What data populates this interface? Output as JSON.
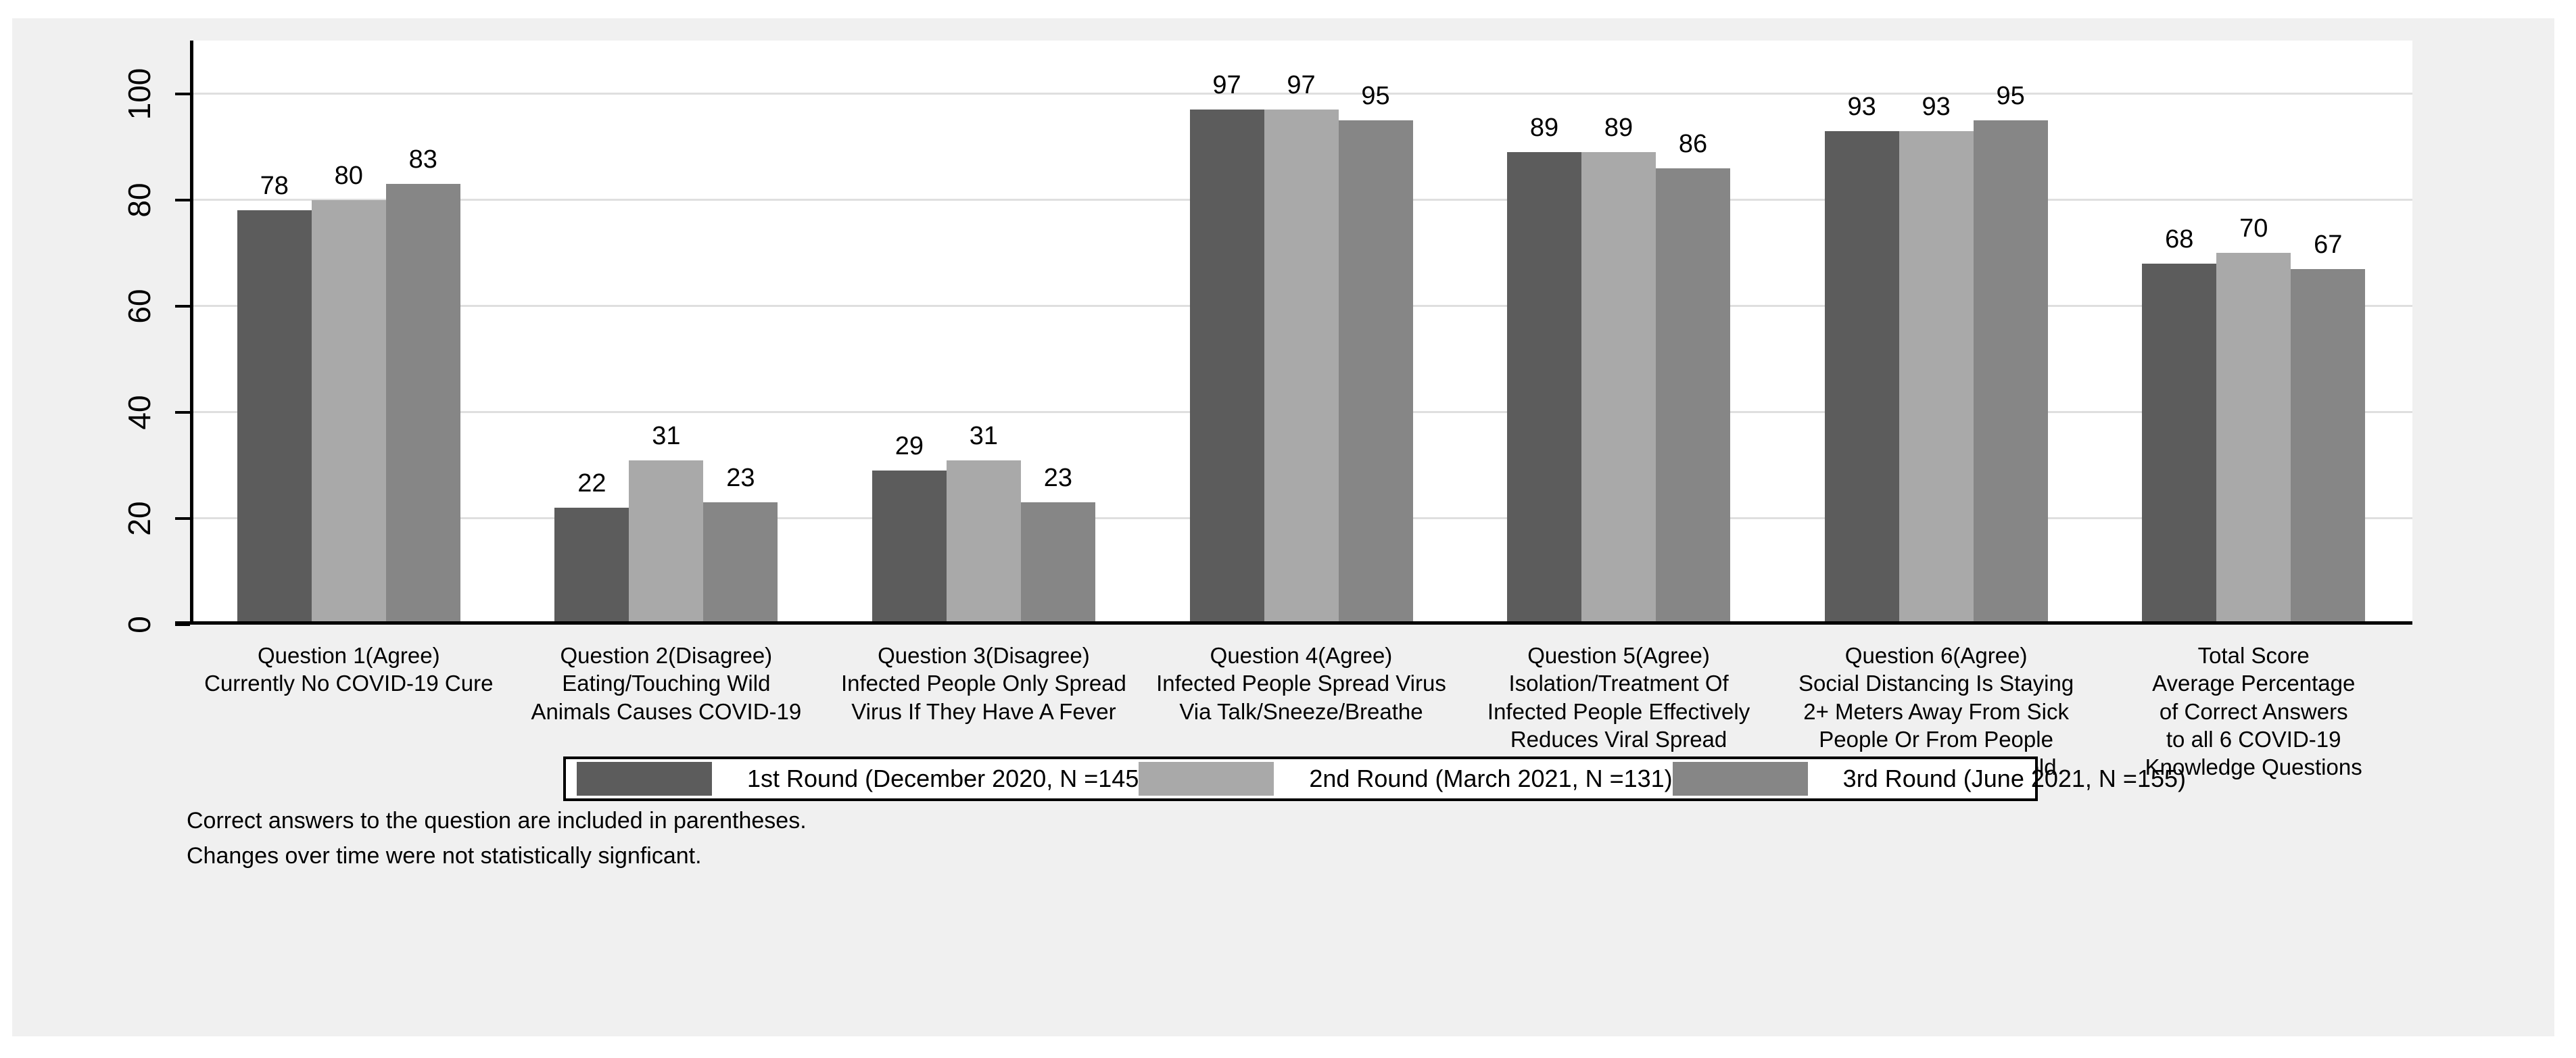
{
  "page": {
    "background": "#ffffff",
    "canvas_background": "#f0f0f0"
  },
  "chart_data": {
    "type": "bar",
    "title": "",
    "xlabel": "",
    "ylabel": "",
    "ylim": [
      0,
      110
    ],
    "yticks": [
      0,
      20,
      40,
      60,
      80,
      100
    ],
    "grid": "horizontal",
    "plot_background": "#ffffff",
    "gridline_color": "#dfdfdf",
    "axis_color": "#000000",
    "value_labels_shown": true,
    "categories": [
      [
        "Question 1(Agree)",
        "Currently No COVID-19 Cure"
      ],
      [
        "Question 2(Disagree)",
        "Eating/Touching Wild",
        "Animals Causes COVID-19"
      ],
      [
        "Question 3(Disagree)",
        "Infected People Only Spread",
        "Virus If They Have A Fever"
      ],
      [
        "Question 4(Agree)",
        "Infected People Spread Virus",
        "Via Talk/Sneeze/Breathe"
      ],
      [
        "Question 5(Agree)",
        "Isolation/Treatment Of",
        "Infected People Effectively",
        "Reduces Viral Spread"
      ],
      [
        "Question 6(Agree)",
        "Social Distancing Is Staying",
        "2+ Meters Away From Sick",
        "People Or From People",
        "Outside Your Household"
      ],
      [
        "Total Score",
        "Average Percentage",
        "of Correct Answers",
        "to all 6 COVID-19",
        "Knowledge Questions"
      ]
    ],
    "series": [
      {
        "name": "1st Round (December 2020, N =145",
        "color": "#5c5c5c",
        "values": [
          78,
          22,
          29,
          97,
          89,
          93,
          68
        ]
      },
      {
        "name": "2nd Round (March 2021, N =131)",
        "color": "#a9a9a9",
        "values": [
          80,
          31,
          31,
          97,
          89,
          93,
          70
        ]
      },
      {
        "name": "3rd Round (June 2021, N =155)",
        "color": "#868686",
        "values": [
          83,
          23,
          23,
          95,
          86,
          95,
          67
        ]
      }
    ],
    "legend": {
      "position": "bottom-center",
      "background": "#ffffff",
      "border_color": "#000000"
    },
    "notes": [
      "Correct answers to the question are included in parentheses.",
      "Changes over time were not statistically signficant."
    ]
  }
}
